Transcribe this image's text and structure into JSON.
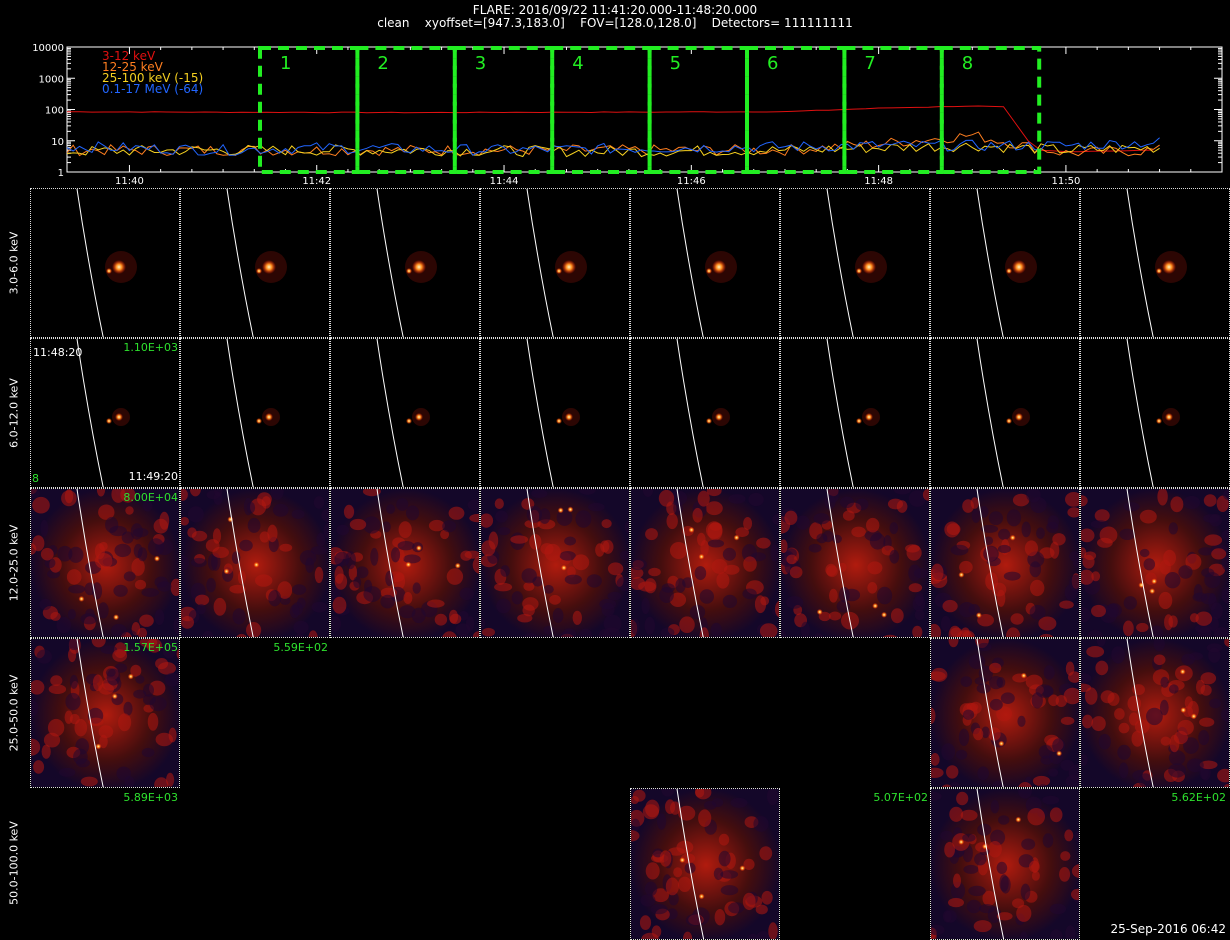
{
  "header": {
    "line1": "FLARE: 2016/09/22 11:41:20.000-11:48:20.000",
    "line2": "clean    xyoffset=[947.3,183.0]    FOV=[128.0,128.0]    Detectors= 111111111"
  },
  "chart_data": {
    "type": "line",
    "yscale": "log",
    "ylim": [
      1,
      10000
    ],
    "y_ticks": [
      "1",
      "10",
      "100",
      "1000",
      "10000"
    ],
    "x_ticks": [
      "11:40",
      "11:42",
      "11:44",
      "11:46",
      "11:48",
      "11:50"
    ],
    "series": [
      {
        "name": "3-12 keV",
        "color": "#e01010",
        "x": [
          "11:39",
          "11:41",
          "11:43",
          "11:45",
          "11:47",
          "11:48",
          "11:49",
          "11:49:20",
          "11:49:40",
          "11:50",
          "11:51"
        ],
        "values": [
          85,
          82,
          80,
          82,
          85,
          110,
          130,
          120,
          5,
          4.5,
          5
        ]
      },
      {
        "name": "12-25 keV",
        "color": "#ff7f20",
        "x": [
          "11:39",
          "11:41",
          "11:43",
          "11:45",
          "11:47",
          "11:48",
          "11:49",
          "11:49:40",
          "11:50",
          "11:51"
        ],
        "values": [
          5,
          5,
          5,
          5,
          5,
          8,
          15,
          6,
          4,
          5
        ]
      },
      {
        "name": "25-100 keV (-15)",
        "color": "#f5d020",
        "x": [
          "11:39",
          "11:41",
          "11:43",
          "11:45",
          "11:47",
          "11:49",
          "11:50",
          "11:51"
        ],
        "values": [
          4.5,
          5,
          5,
          4.5,
          5,
          7,
          5,
          6
        ]
      },
      {
        "name": "0.1-17 MeV (-64)",
        "color": "#2266ff",
        "x": [
          "11:39",
          "11:41",
          "11:42",
          "11:44",
          "11:46",
          "11:48",
          "11:50",
          "11:51"
        ],
        "values": [
          7,
          5,
          6,
          5,
          6,
          7,
          7,
          9
        ]
      }
    ],
    "intervals": [
      "1",
      "2",
      "3",
      "4",
      "5",
      "6",
      "7",
      "8"
    ],
    "interval_color": "#22ee22"
  },
  "rows": [
    {
      "label": "3.0-6.0 keV"
    },
    {
      "label": "6.0-12.0 keV"
    },
    {
      "label": "12.0-25.0 keV"
    },
    {
      "label": "25.0-50.0 keV"
    },
    {
      "label": "50.0-100.0 keV"
    }
  ],
  "panel_labels": {
    "r1_time_start": "11:48:20",
    "r1_time_end": "11:49:20",
    "r1_index": "8",
    "r1_max": "1.10E+03",
    "r2_max": "8.00E+04",
    "r3_max_a": "1.57E+05",
    "r3_max_b": "5.59E+02",
    "r4_max_a": "5.89E+03",
    "r4_max_b": "5.07E+02",
    "r4_max_c": "5.62E+02"
  },
  "footer": {
    "timestamp": "25-Sep-2016 06:42"
  }
}
